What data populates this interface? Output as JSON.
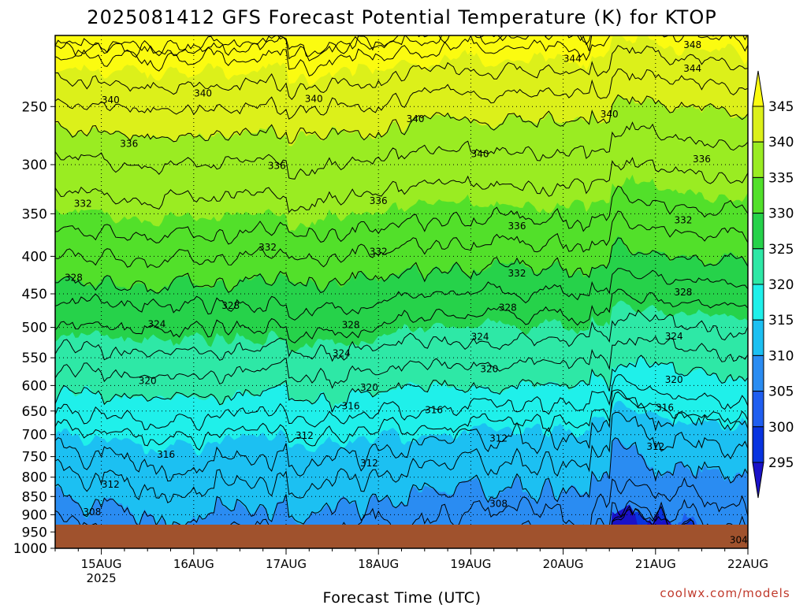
{
  "chart_data": {
    "type": "heatmap",
    "title": "2025081412 GFS Forecast Potential Temperature (K) for KTOP",
    "xlabel": "Forecast Time (UTC)",
    "ylabel": "",
    "credit": "coolwx.com/models",
    "x_categories": [
      "15AUG",
      "16AUG",
      "17AUG",
      "18AUG",
      "19AUG",
      "20AUG",
      "21AUG",
      "22AUG"
    ],
    "x_sublabel": "2025",
    "y_scale": "log",
    "y_ticks": [
      250,
      300,
      350,
      400,
      450,
      500,
      550,
      600,
      650,
      700,
      750,
      800,
      850,
      900,
      950,
      1000
    ],
    "y_range": [
      200,
      1000
    ],
    "x_range_days": [
      0,
      7.5
    ],
    "colorbar": {
      "levels": [
        295,
        300,
        305,
        310,
        315,
        320,
        325,
        330,
        335,
        340,
        345
      ],
      "colors": [
        "#1a12c8",
        "#0834e0",
        "#1f5ef0",
        "#2a8cf2",
        "#1cc0f2",
        "#1ff0ea",
        "#2ee8a6",
        "#26d24a",
        "#52e02a",
        "#9aec22",
        "#dcf01a",
        "#fbfb10"
      ],
      "extend": "both"
    },
    "contour_labels": [
      {
        "x": 0.6,
        "p": 245,
        "v": 340
      },
      {
        "x": 1.6,
        "p": 240,
        "v": 340
      },
      {
        "x": 2.8,
        "p": 244,
        "v": 340
      },
      {
        "x": 3.9,
        "p": 260,
        "v": 340
      },
      {
        "x": 4.6,
        "p": 290,
        "v": 340
      },
      {
        "x": 6.0,
        "p": 256,
        "v": 340
      },
      {
        "x": 5.6,
        "p": 215,
        "v": 344
      },
      {
        "x": 6.9,
        "p": 222,
        "v": 344
      },
      {
        "x": 6.9,
        "p": 206,
        "v": 348
      },
      {
        "x": 0.8,
        "p": 281,
        "v": 336
      },
      {
        "x": 2.4,
        "p": 301,
        "v": 336
      },
      {
        "x": 3.5,
        "p": 336,
        "v": 336
      },
      {
        "x": 5.0,
        "p": 364,
        "v": 336
      },
      {
        "x": 7.0,
        "p": 295,
        "v": 336
      },
      {
        "x": 0.3,
        "p": 339,
        "v": 332
      },
      {
        "x": 2.3,
        "p": 389,
        "v": 332
      },
      {
        "x": 3.5,
        "p": 394,
        "v": 332
      },
      {
        "x": 5.0,
        "p": 422,
        "v": 332
      },
      {
        "x": 6.8,
        "p": 357,
        "v": 332
      },
      {
        "x": 0.2,
        "p": 428,
        "v": 328
      },
      {
        "x": 1.9,
        "p": 467,
        "v": 328
      },
      {
        "x": 3.2,
        "p": 496,
        "v": 328
      },
      {
        "x": 4.9,
        "p": 470,
        "v": 328
      },
      {
        "x": 6.8,
        "p": 448,
        "v": 328
      },
      {
        "x": 1.1,
        "p": 495,
        "v": 324
      },
      {
        "x": 3.1,
        "p": 542,
        "v": 324
      },
      {
        "x": 4.6,
        "p": 515,
        "v": 324
      },
      {
        "x": 6.7,
        "p": 514,
        "v": 324
      },
      {
        "x": 1.0,
        "p": 591,
        "v": 320
      },
      {
        "x": 3.4,
        "p": 604,
        "v": 320
      },
      {
        "x": 4.7,
        "p": 570,
        "v": 320
      },
      {
        "x": 6.7,
        "p": 589,
        "v": 320
      },
      {
        "x": 3.2,
        "p": 640,
        "v": 316
      },
      {
        "x": 4.1,
        "p": 648,
        "v": 316
      },
      {
        "x": 6.6,
        "p": 643,
        "v": 316
      },
      {
        "x": 1.2,
        "p": 745,
        "v": 316
      },
      {
        "x": 0.6,
        "p": 819,
        "v": 312
      },
      {
        "x": 2.7,
        "p": 702,
        "v": 312
      },
      {
        "x": 3.4,
        "p": 766,
        "v": 312
      },
      {
        "x": 4.8,
        "p": 708,
        "v": 312
      },
      {
        "x": 6.5,
        "p": 727,
        "v": 312
      },
      {
        "x": 0.4,
        "p": 893,
        "v": 308
      },
      {
        "x": 4.8,
        "p": 870,
        "v": 308
      },
      {
        "x": 7.4,
        "p": 974,
        "v": 304
      }
    ]
  }
}
